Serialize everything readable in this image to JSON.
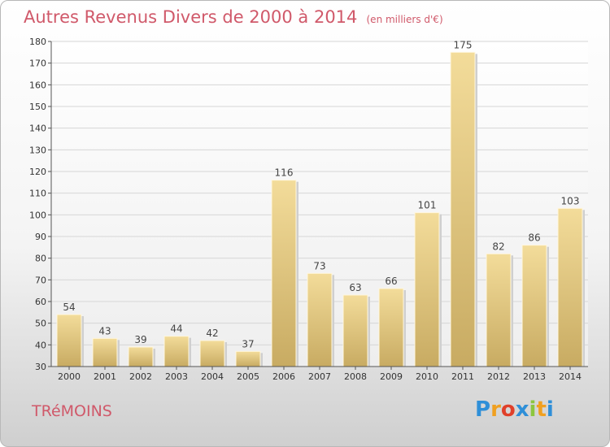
{
  "header": {
    "title": "Autres Revenus Divers de 2000 à 2014",
    "subtitle": "(en milliers d'€)"
  },
  "footer": {
    "place": "TRéMOINS",
    "logo": {
      "letters": [
        "P",
        "r",
        "o",
        "x",
        "i",
        "t",
        "i"
      ],
      "colors": [
        "#2f8fd8",
        "#f0a020",
        "#e0402a",
        "#2f8fd8",
        "#8cc63f",
        "#f0a020",
        "#2f8fd8"
      ]
    }
  },
  "chart_data": {
    "type": "bar",
    "categories": [
      "2000",
      "2001",
      "2002",
      "2003",
      "2004",
      "2005",
      "2006",
      "2007",
      "2008",
      "2009",
      "2010",
      "2011",
      "2012",
      "2013",
      "2014"
    ],
    "values": [
      54,
      43,
      39,
      44,
      42,
      37,
      116,
      73,
      63,
      66,
      101,
      175,
      82,
      86,
      103
    ],
    "ylim": [
      30,
      180
    ],
    "yticks": [
      30,
      40,
      50,
      60,
      70,
      80,
      90,
      100,
      110,
      120,
      130,
      140,
      150,
      160,
      170,
      180
    ],
    "grid": true,
    "bar_color": "#e8cd84"
  }
}
